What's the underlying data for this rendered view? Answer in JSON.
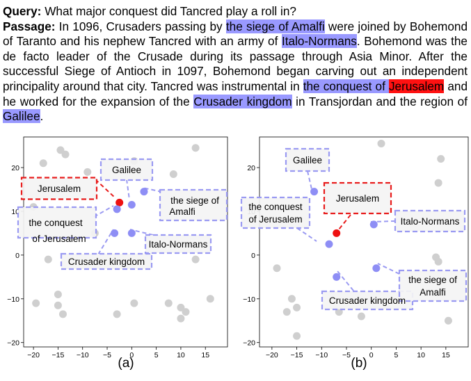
{
  "query": {
    "label": "Query:",
    "text": "What major conquest did Tancred play a roll in?"
  },
  "passage": {
    "label": "Passage:",
    "segments": [
      {
        "text": " In 1096, Crusaders passing by "
      },
      {
        "text": "the siege of Amalfi",
        "highlight": "blue"
      },
      {
        "text": " were joined by Bohemond of Taranto and his nephew Tancred with an army of "
      },
      {
        "text": "Italo-Normans",
        "highlight": "blue"
      },
      {
        "text": ". Bohemond was the de facto leader of the Crusade during its passage through Asia Minor. After the successful Siege of Antioch in 1097, Bohemond began carving out an independent principality around that city. Tancred was instrumental in "
      },
      {
        "text": "the conquest of ",
        "highlight": "blue"
      },
      {
        "text": "Jerusalem",
        "highlight": "red"
      },
      {
        "text": " and he worked for the expansion of the "
      },
      {
        "text": "Crusader kingdom",
        "highlight": "blue"
      },
      {
        "text": " in Transjordan and the region of "
      },
      {
        "text": "Galilee",
        "highlight": "blue"
      },
      {
        "text": "."
      }
    ]
  },
  "colors": {
    "blue_highlight": "#9999ff",
    "red_highlight": "#ff1111",
    "gray_point": "#cfcfcf",
    "blue_point": "#8e8ef5",
    "red_point": "#ee1111"
  },
  "chart_data": [
    {
      "type": "scatter",
      "caption": "(a)",
      "xlim": [
        -22,
        19.5
      ],
      "ylim": [
        -21,
        27
      ],
      "xticks": [
        -20,
        -15,
        -10,
        -5,
        0,
        5,
        10,
        15
      ],
      "yticks": [
        -20,
        -10,
        0,
        10,
        20
      ],
      "background_points": [
        [
          -18,
          21
        ],
        [
          -14.5,
          24
        ],
        [
          -13.5,
          23
        ],
        [
          -9,
          19
        ],
        [
          0.5,
          21.5
        ],
        [
          8.5,
          18.5
        ],
        [
          13,
          24.5
        ],
        [
          -20,
          11
        ],
        [
          -7.5,
          5
        ],
        [
          -17,
          -1
        ],
        [
          13,
          -1
        ],
        [
          -15,
          -9
        ],
        [
          -15,
          -11.5
        ],
        [
          -14,
          -13.5
        ],
        [
          -19.5,
          -11
        ],
        [
          -3,
          -13.5
        ],
        [
          0.5,
          -11
        ],
        [
          7.5,
          -11
        ],
        [
          10,
          -12
        ],
        [
          10,
          -14.5
        ],
        [
          11,
          -13
        ],
        [
          16,
          -10
        ]
      ],
      "labeled_points": [
        {
          "label": "Jerusalem",
          "x": -2.5,
          "y": 12,
          "color": "red"
        },
        {
          "label": "Galilee",
          "x": 0,
          "y": 11.5,
          "color": "blue"
        },
        {
          "label": "the siege of Amalfi",
          "x": 2.5,
          "y": 14.5,
          "color": "blue"
        },
        {
          "label": "the conquest of Jerusalem",
          "x": -3,
          "y": 10.5,
          "color": "blue"
        },
        {
          "label": "Crusader kingdom",
          "x": -3.5,
          "y": 5,
          "color": "blue"
        },
        {
          "label": "Italo-Normans",
          "x": 0,
          "y": 5,
          "color": "blue"
        }
      ]
    },
    {
      "type": "scatter",
      "caption": "(b)",
      "xlim": [
        -22.5,
        19.5
      ],
      "ylim": [
        -21,
        27
      ],
      "xticks": [
        -20,
        -15,
        -10,
        -5,
        0,
        5,
        10,
        15
      ],
      "yticks": [
        -20,
        -10,
        0,
        10,
        20
      ],
      "background_points": [
        [
          2,
          25.5
        ],
        [
          14,
          22
        ],
        [
          13.5,
          16.5
        ],
        [
          13,
          -0.5
        ],
        [
          13.5,
          -1.5
        ],
        [
          -19,
          -3
        ],
        [
          -17,
          -13
        ],
        [
          -16,
          -10
        ],
        [
          -15,
          -12
        ],
        [
          -15,
          -18.5
        ],
        [
          -6.5,
          -13
        ],
        [
          -2,
          -14
        ],
        [
          15.5,
          -15
        ]
      ],
      "labeled_points": [
        {
          "label": "Jerusalem",
          "x": -7,
          "y": 5,
          "color": "red"
        },
        {
          "label": "Galilee",
          "x": -11.5,
          "y": 14.5,
          "color": "blue"
        },
        {
          "label": "the conquest of Jerusalem",
          "x": -8.5,
          "y": 2.5,
          "color": "blue"
        },
        {
          "label": "Italo-Normans",
          "x": 0.5,
          "y": 7,
          "color": "blue"
        },
        {
          "label": "Crusader kingdom",
          "x": -7,
          "y": -5,
          "color": "blue"
        },
        {
          "label": "the siege of Amalfi",
          "x": 1,
          "y": -3,
          "color": "blue"
        }
      ]
    }
  ]
}
